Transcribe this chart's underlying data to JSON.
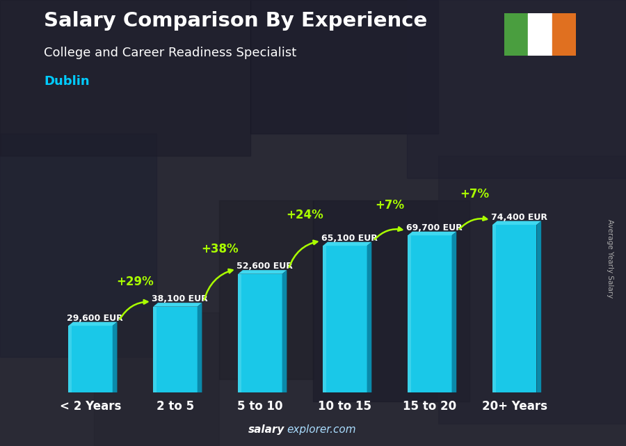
{
  "title": "Salary Comparison By Experience",
  "subtitle": "College and Career Readiness Specialist",
  "city": "Dublin",
  "categories": [
    "< 2 Years",
    "2 to 5",
    "5 to 10",
    "10 to 15",
    "15 to 20",
    "20+ Years"
  ],
  "values": [
    29600,
    38100,
    52600,
    65100,
    69700,
    74400
  ],
  "pct_changes": [
    "+29%",
    "+38%",
    "+24%",
    "+7%",
    "+7%"
  ],
  "labels": [
    "29,600 EUR",
    "38,100 EUR",
    "52,600 EUR",
    "65,100 EUR",
    "69,700 EUR",
    "74,400 EUR"
  ],
  "bar_color_front": "#1ac8e8",
  "bar_color_light": "#5addee",
  "bar_color_dark": "#0a8aaa",
  "bar_color_top": "#40d8f0",
  "background_color": "#1a1a2e",
  "bg_overlay": "#2a2a3a",
  "title_color": "#ffffff",
  "subtitle_color": "#ffffff",
  "city_color": "#00ccff",
  "label_color": "#ffffff",
  "pct_color": "#aaff00",
  "arrow_color": "#aaff00",
  "xlabel_color": "#ffffff",
  "watermark_bold": "salary",
  "watermark_normal": "explorer.com",
  "ylabel_text": "Average Yearly Salary",
  "flag_green": "#4a9e3f",
  "flag_white": "#ffffff",
  "flag_orange": "#e07020",
  "ylim_max": 95000
}
